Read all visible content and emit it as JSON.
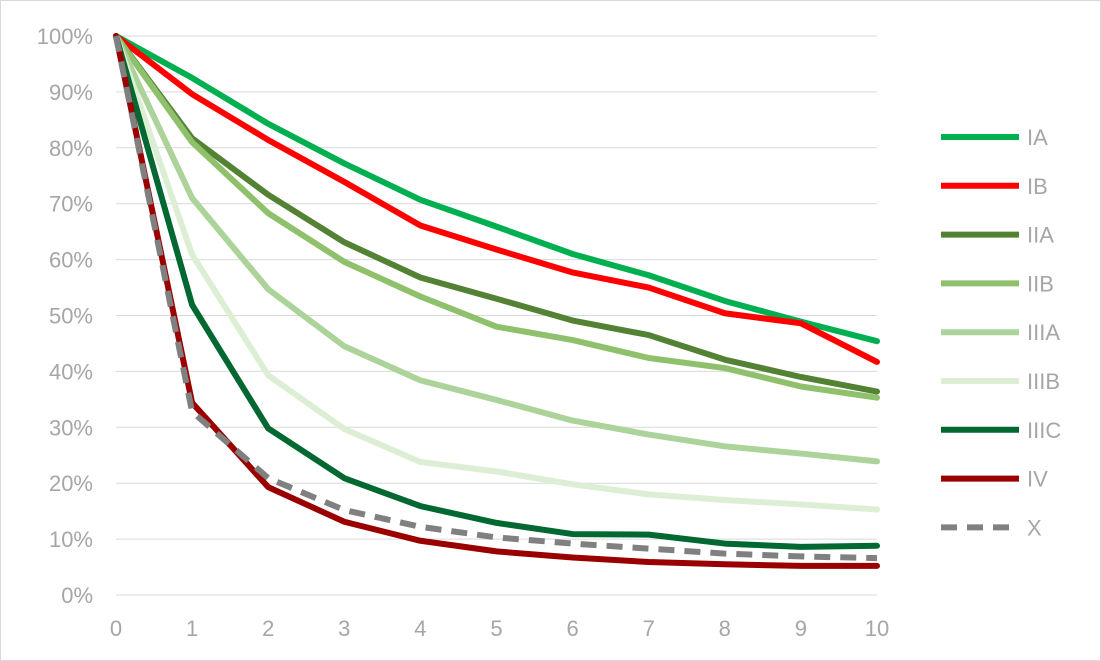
{
  "chart_data": {
    "type": "line",
    "x": [
      0,
      1,
      2,
      3,
      4,
      5,
      6,
      7,
      8,
      9,
      10
    ],
    "xlim": [
      0,
      10
    ],
    "ylim": [
      0,
      100
    ],
    "y_unit": "%",
    "x_tick_labels": [
      "0",
      "1",
      "2",
      "3",
      "4",
      "5",
      "6",
      "7",
      "8",
      "9",
      "10"
    ],
    "y_tick_labels": [
      "0%",
      "10%",
      "20%",
      "30%",
      "40%",
      "50%",
      "60%",
      "70%",
      "80%",
      "90%",
      "100%"
    ],
    "y_ticks": [
      0,
      10,
      20,
      30,
      40,
      50,
      60,
      70,
      80,
      90,
      100
    ],
    "grid": "horizontal",
    "legend_position": "right",
    "series": [
      {
        "name": "IA",
        "color": "#00b050",
        "dash": "solid",
        "values": [
          100,
          92.5,
          84.3,
          77.2,
          70.7,
          65.9,
          61.0,
          57.2,
          52.6,
          48.9,
          45.4
        ]
      },
      {
        "name": "IB",
        "color": "#ff0000",
        "dash": "solid",
        "values": [
          100,
          89.6,
          81.4,
          73.9,
          66.1,
          61.8,
          57.7,
          55.0,
          50.4,
          48.6,
          41.7
        ]
      },
      {
        "name": "IIA",
        "color": "#548235",
        "dash": "solid",
        "values": [
          100,
          81.7,
          71.6,
          63.1,
          56.8,
          53.0,
          49.1,
          46.5,
          42.1,
          39.0,
          36.4
        ]
      },
      {
        "name": "IIB",
        "color": "#8fc16c",
        "dash": "solid",
        "values": [
          100,
          81.0,
          68.3,
          59.6,
          53.4,
          48.0,
          45.6,
          42.4,
          40.6,
          37.3,
          35.3
        ]
      },
      {
        "name": "IIIA",
        "color": "#abd39a",
        "dash": "solid",
        "values": [
          100,
          71.0,
          54.7,
          44.5,
          38.4,
          34.9,
          31.2,
          28.7,
          26.6,
          25.3,
          23.9
        ]
      },
      {
        "name": "IIIB",
        "color": "#dcefd4",
        "dash": "solid",
        "values": [
          100,
          60.9,
          39.3,
          29.7,
          23.8,
          22.1,
          19.8,
          18.0,
          17.0,
          16.2,
          15.3
        ]
      },
      {
        "name": "IIIC",
        "color": "#006830",
        "dash": "solid",
        "values": [
          100,
          51.9,
          29.8,
          20.9,
          15.9,
          12.9,
          10.9,
          10.8,
          9.2,
          8.6,
          8.8
        ]
      },
      {
        "name": "IV",
        "color": "#9a0000",
        "dash": "solid",
        "values": [
          100,
          34.4,
          19.3,
          13.1,
          9.7,
          7.8,
          6.7,
          5.9,
          5.5,
          5.2,
          5.2
        ]
      },
      {
        "name": "X",
        "color": "#808080",
        "dash": "dashed",
        "values": [
          100,
          32.8,
          20.9,
          15.2,
          12.2,
          10.3,
          9.2,
          8.3,
          7.4,
          6.9,
          6.6
        ]
      }
    ]
  }
}
